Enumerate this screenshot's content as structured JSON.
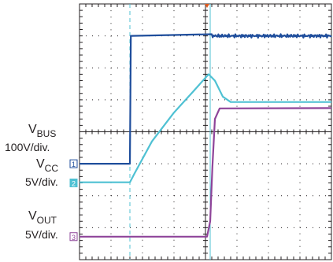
{
  "chart_data": {
    "type": "line",
    "title": "",
    "xlabel": "",
    "ylabel": "",
    "grid": true,
    "x_divisions": 8,
    "y_divisions": 8,
    "xlim": [
      0,
      8
    ],
    "ylim": [
      0,
      8
    ],
    "cursors_x": [
      1.6,
      4.15
    ],
    "trigger_marker_x": 4.05,
    "channels": [
      {
        "id": "1",
        "name_main": "V",
        "name_sub": "BUS",
        "scale": "100V/div.",
        "color": "#1f4e9c",
        "ground_div": 3.0,
        "points": [
          [
            0,
            3.0
          ],
          [
            1.6,
            3.0
          ],
          [
            1.63,
            7.0
          ],
          [
            8,
            7.0
          ]
        ],
        "noisy_from_x": 4.2
      },
      {
        "id": "2",
        "name_main": "V",
        "name_sub": "CC",
        "scale": "5V/div.",
        "color": "#4fc1d3",
        "ground_div": 2.4,
        "points": [
          [
            0,
            2.42
          ],
          [
            1.6,
            2.42
          ],
          [
            1.75,
            2.7
          ],
          [
            2.3,
            3.7
          ],
          [
            3.0,
            4.6
          ],
          [
            3.6,
            5.25
          ],
          [
            4.1,
            5.8
          ],
          [
            4.3,
            5.6
          ],
          [
            4.55,
            5.1
          ],
          [
            4.8,
            4.93
          ],
          [
            8,
            4.93
          ]
        ]
      },
      {
        "id": "3",
        "name_main": "V",
        "name_sub": "OUT",
        "scale": "5V/div.",
        "color": "#8e4499",
        "ground_div": 0.72,
        "points": [
          [
            0,
            0.72
          ],
          [
            4.05,
            0.72
          ],
          [
            4.15,
            1.2
          ],
          [
            4.22,
            2.9
          ],
          [
            4.3,
            4.4
          ],
          [
            4.45,
            4.73
          ],
          [
            8,
            4.74
          ]
        ]
      }
    ]
  }
}
